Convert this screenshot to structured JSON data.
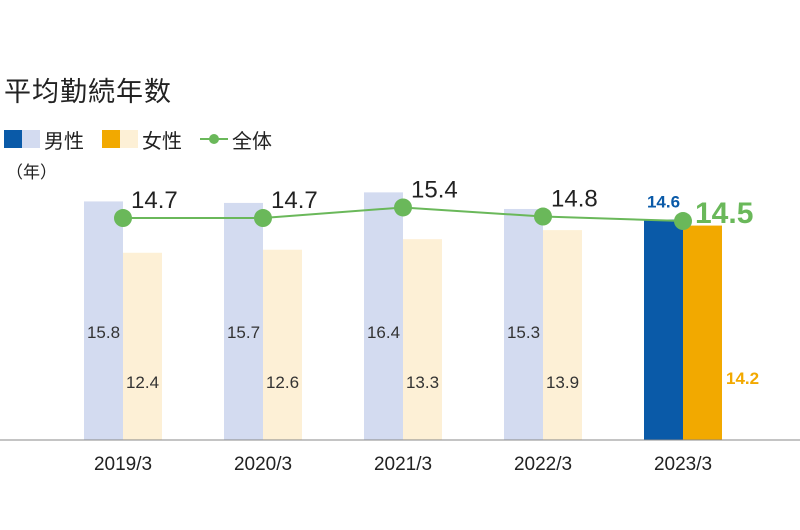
{
  "title": "平均勤続年数",
  "unit_label": "（年）",
  "legend": {
    "male": "男性",
    "female": "女性",
    "total": "全体"
  },
  "colors": {
    "male_past": "#d3dbf0",
    "female_past": "#fdf0d6",
    "male_latest": "#0a5aa8",
    "female_latest": "#f2a900",
    "total_line": "#6ab85a",
    "axis": "#888888"
  },
  "chart_data": {
    "type": "bar",
    "categories": [
      "2019/3",
      "2020/3",
      "2021/3",
      "2022/3",
      "2023/3"
    ],
    "series": [
      {
        "name": "男性",
        "values": [
          15.8,
          15.7,
          16.4,
          15.3,
          14.6
        ]
      },
      {
        "name": "女性",
        "values": [
          12.4,
          12.6,
          13.3,
          13.9,
          14.2
        ]
      },
      {
        "name": "全体",
        "type": "line",
        "values": [
          14.7,
          14.7,
          15.4,
          14.8,
          14.5
        ]
      }
    ],
    "ylabel": "（年）",
    "grid": false,
    "legend_position": "top-left"
  }
}
